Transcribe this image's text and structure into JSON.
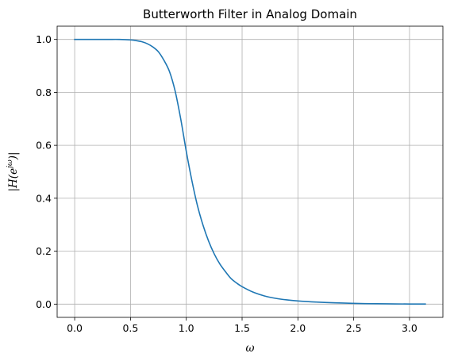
{
  "chart_data": {
    "type": "line",
    "title": "Butterworth Filter in Analog Domain",
    "xlabel": "ω",
    "ylabel": "|H(e^{jω})|",
    "ylabel_parts": {
      "prefix": "|H(e",
      "sup": "jω",
      "suffix": ")|"
    },
    "xlim": [
      -0.157,
      3.299
    ],
    "ylim": [
      -0.05,
      1.05
    ],
    "xticks": [
      0.0,
      0.5,
      1.0,
      1.5,
      2.0,
      2.5,
      3.0
    ],
    "xtick_labels": [
      "0.0",
      "0.5",
      "1.0",
      "1.5",
      "2.0",
      "2.5",
      "3.0"
    ],
    "yticks": [
      0.0,
      0.2,
      0.4,
      0.6,
      0.8,
      1.0
    ],
    "ytick_labels": [
      "0.0",
      "0.2",
      "0.4",
      "0.6",
      "0.8",
      "1.0"
    ],
    "grid": true,
    "series": [
      {
        "color": "#1f77b4",
        "x": [
          0.0,
          0.1,
          0.2,
          0.3,
          0.4,
          0.5,
          0.55,
          0.6,
          0.65,
          0.7,
          0.75,
          0.8,
          0.85,
          0.9,
          0.95,
          1.0,
          1.05,
          1.1,
          1.15,
          1.2,
          1.25,
          1.3,
          1.35,
          1.4,
          1.45,
          1.5,
          1.6,
          1.7,
          1.8,
          1.9,
          2.0,
          2.2,
          2.4,
          2.6,
          2.8,
          3.0,
          3.1416
        ],
        "y": [
          1.0,
          1.0,
          1.0,
          1.0,
          1.0,
          0.998,
          0.9956,
          0.9915,
          0.9839,
          0.9718,
          0.9533,
          0.921,
          0.878,
          0.805,
          0.7,
          0.577,
          0.467,
          0.372,
          0.298,
          0.238,
          0.19,
          0.152,
          0.123,
          0.097,
          0.08,
          0.066,
          0.045,
          0.031,
          0.022,
          0.016,
          0.012,
          0.007,
          0.004,
          0.002,
          0.001,
          0.0005,
          0.0003
        ]
      }
    ]
  }
}
